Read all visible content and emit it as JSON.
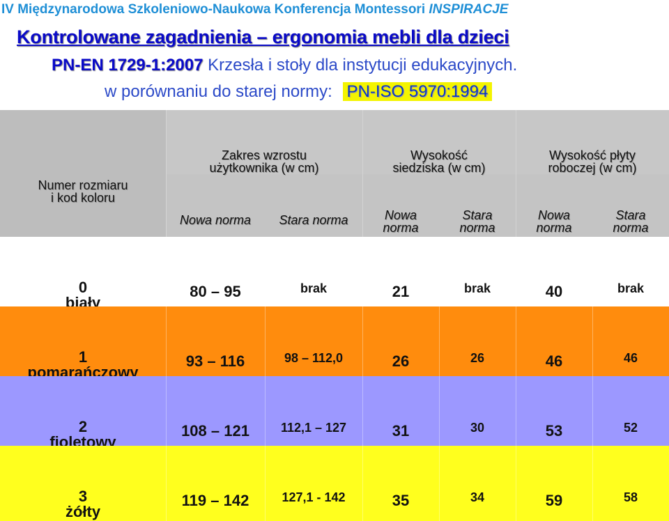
{
  "conference": {
    "name": "IV Międzynarodowa Szkoleniowo-Naukowa Konferencja Montessori",
    "brand": "INSPIRACJE"
  },
  "title": "Kontrolowane zagadnienia – ergonomia mebli dla dzieci",
  "norm": {
    "code": "PN-EN 1729-1:2007",
    "description": "Krzesła i stoły dla instytucji edukacyjnych."
  },
  "comparison": {
    "label": "w porównaniu do starej normy:",
    "old_code": "PN-ISO 5970:1994"
  },
  "table": {
    "header": {
      "size_label_line1": "Numer rozmiaru",
      "size_label_line2": "i kod koloru",
      "groups": [
        {
          "line1": "Zakres wzrostu",
          "line2": "użytkownika (w cm)"
        },
        {
          "line1": "Wysokość",
          "line2": "siedziska (w cm)"
        },
        {
          "line1": "Wysokość płyty",
          "line2": "roboczej (w cm)"
        }
      ],
      "sub": {
        "new_full": "Nowa norma",
        "old_full": "Stara norma",
        "new_word": "Nowa",
        "old_word": "Stara",
        "norm_word": "norma"
      }
    },
    "rows": [
      {
        "number": "0",
        "color_name": "biały",
        "bg": "#ffffff",
        "growth_new": "80 – 95",
        "growth_old": "brak",
        "seat_new": "21",
        "seat_old": "brak",
        "desk_new": "40",
        "desk_old": "brak"
      },
      {
        "number": "1",
        "color_name": "pomarańczowy",
        "bg": "#ff8c0d",
        "growth_new": "93 – 116",
        "growth_old": "98 – 112,0",
        "seat_new": "26",
        "seat_old": "26",
        "desk_new": "46",
        "desk_old": "46"
      },
      {
        "number": "2",
        "color_name": "fioletowy",
        "bg": "#9c98ff",
        "growth_new": "108 – 121",
        "growth_old": "112,1 – 127",
        "seat_new": "31",
        "seat_old": "30",
        "desk_new": "53",
        "desk_old": "52"
      },
      {
        "number": "3",
        "color_name": "żółty",
        "bg": "#ffff1e",
        "growth_new": "119 – 142",
        "growth_old": "127,1 - 142",
        "seat_new": "35",
        "seat_old": "34",
        "desk_new": "59",
        "desk_old": "58"
      }
    ]
  },
  "colors": {
    "header_text": "#1f8fd6",
    "title": "#0a0ac8",
    "highlight": "#f4f400",
    "table_header_bg": "#bdbdbd"
  }
}
